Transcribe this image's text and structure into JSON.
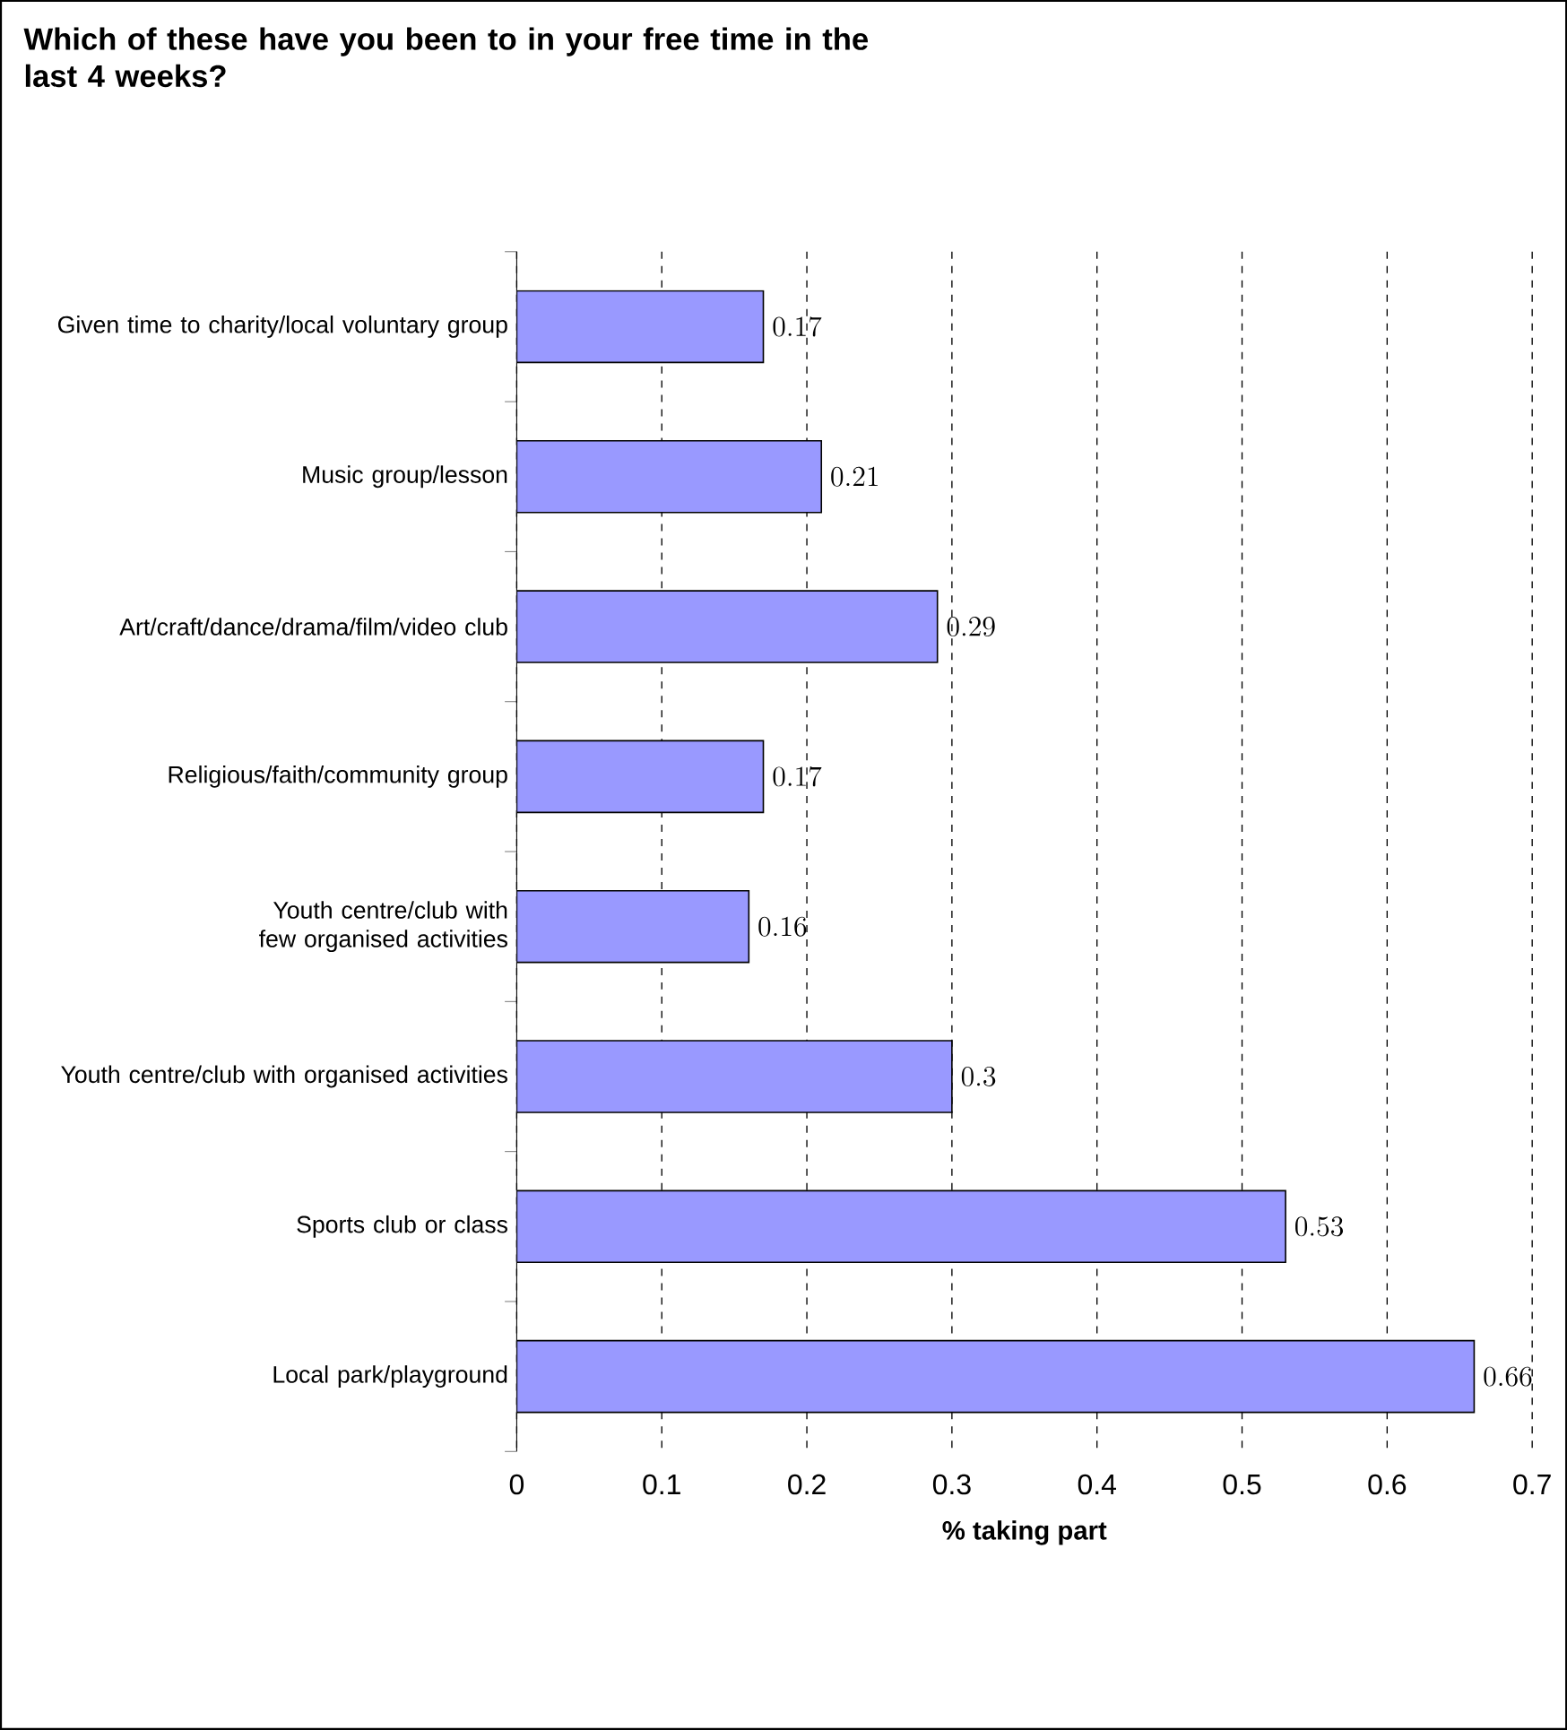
{
  "chart_data": {
    "type": "bar",
    "orientation": "horizontal",
    "title": "Which of these have you been to in your free time in the last 4 weeks?",
    "categories": [
      "Given time to charity/local voluntary group",
      "Music group/lesson",
      "Art/craft/dance/drama/film/video club",
      "Religious/faith/community group",
      "Youth centre/club with few organised activities",
      "Youth centre/club with organised activities",
      "Sports club or class",
      "Local park/playground"
    ],
    "values": [
      0.17,
      0.21,
      0.29,
      0.17,
      0.16,
      0.3,
      0.53,
      0.66
    ],
    "color": "#9999ff",
    "xlabel": "% taking part",
    "xlim": [
      0,
      0.7
    ],
    "xticks": [
      0,
      0.1,
      0.2,
      0.3,
      0.4,
      0.5,
      0.6,
      0.7
    ],
    "grid": "x",
    "data_labels": true
  }
}
